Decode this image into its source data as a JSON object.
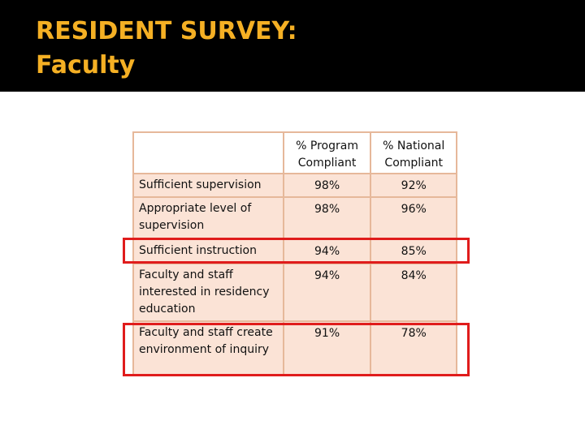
{
  "slide": {
    "title_line1": "RESIDENT SURVEY:",
    "title_line2": "Faculty"
  },
  "table": {
    "headers": {
      "label": "",
      "program": [
        "% Program",
        "Compliant"
      ],
      "national": [
        "% National",
        "Compliant"
      ]
    },
    "rows": [
      {
        "label": "Sufficient supervision",
        "program": "98%",
        "national": "92%"
      },
      {
        "label": "Appropriate level of supervision",
        "program": "98%",
        "national": "96%"
      },
      {
        "label": "Sufficient instruction",
        "program": "94%",
        "national": "85%"
      },
      {
        "label": "Faculty and staff interested in residency education",
        "program": "94%",
        "national": "84%"
      },
      {
        "label": "Faculty and staff create environment of inquiry",
        "program": "91%",
        "national": "78%"
      }
    ]
  },
  "colors": {
    "title_bar": "#000000",
    "title_text": "#f5b024",
    "cell_fill": "#fbe3d6",
    "cell_border": "#e6b89a",
    "highlight": "#e01c1c"
  }
}
